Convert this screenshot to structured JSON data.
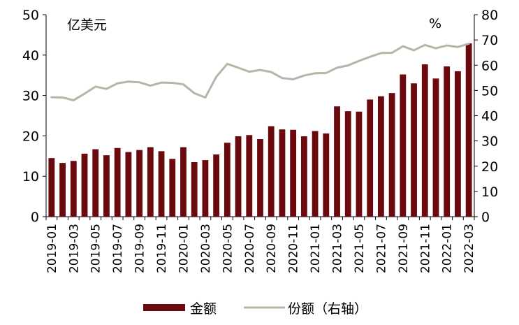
{
  "chart_data": {
    "type": "bar",
    "categories": [
      "2019-01",
      "2019-02",
      "2019-03",
      "2019-04",
      "2019-05",
      "2019-06",
      "2019-07",
      "2019-08",
      "2019-09",
      "2019-10",
      "2019-11",
      "2019-12",
      "2020-01",
      "2020-02",
      "2020-03",
      "2020-04",
      "2020-05",
      "2020-06",
      "2020-07",
      "2020-08",
      "2020-09",
      "2020-10",
      "2020-11",
      "2020-12",
      "2021-01",
      "2021-02",
      "2021-03",
      "2021-04",
      "2021-05",
      "2021-06",
      "2021-07",
      "2021-08",
      "2021-09",
      "2021-10",
      "2021-11",
      "2021-12",
      "2022-01",
      "2022-02",
      "2022-03"
    ],
    "x_tick_labels": [
      "2019-01",
      "2019-03",
      "2019-05",
      "2019-07",
      "2019-09",
      "2019-11",
      "2020-01",
      "2020-03",
      "2020-05",
      "2020-07",
      "2020-09",
      "2020-11",
      "2021-01",
      "2021-03",
      "2021-05",
      "2021-07",
      "2021-09",
      "2021-11",
      "2022-01",
      "2022-03"
    ],
    "series": [
      {
        "name": "金额",
        "type": "bar",
        "axis": "left",
        "color": "#6b0a0e",
        "values": [
          14.5,
          13.3,
          13.8,
          15.6,
          16.7,
          15.2,
          17.0,
          16.0,
          16.5,
          17.2,
          16.2,
          14.3,
          17.2,
          13.5,
          14.0,
          15.4,
          18.3,
          19.9,
          20.2,
          19.2,
          22.4,
          21.6,
          21.5,
          19.9,
          21.2,
          20.6,
          27.3,
          26.1,
          26.0,
          29.0,
          29.8,
          30.6,
          35.2,
          33.0,
          37.7,
          34.2,
          37.2,
          36.0,
          42.9
        ]
      },
      {
        "name": "份额（右轴）",
        "type": "line",
        "axis": "right",
        "color": "#b2b7a8",
        "values": [
          47.3,
          47.2,
          46.1,
          48.7,
          51.5,
          50.6,
          52.8,
          53.5,
          53.2,
          51.9,
          53.1,
          53.0,
          52.4,
          48.9,
          47.2,
          55.4,
          60.5,
          59.0,
          57.4,
          58.1,
          57.3,
          54.9,
          54.4,
          55.9,
          56.8,
          56.9,
          59.0,
          59.9,
          61.7,
          63.3,
          64.8,
          64.9,
          67.5,
          65.9,
          68.0,
          66.7,
          67.8,
          67.2,
          68.5
        ]
      }
    ],
    "left_axis": {
      "unit": "亿美元",
      "ylim": [
        0,
        50
      ],
      "ticks": [
        "0",
        "10",
        "20",
        "30",
        "40",
        "50"
      ]
    },
    "right_axis": {
      "unit": "%",
      "ylim": [
        0,
        80
      ],
      "ticks": [
        "0",
        "10",
        "20",
        "30",
        "40",
        "50",
        "60",
        "70",
        "80"
      ]
    },
    "grid": false,
    "legend_position": "bottom"
  }
}
